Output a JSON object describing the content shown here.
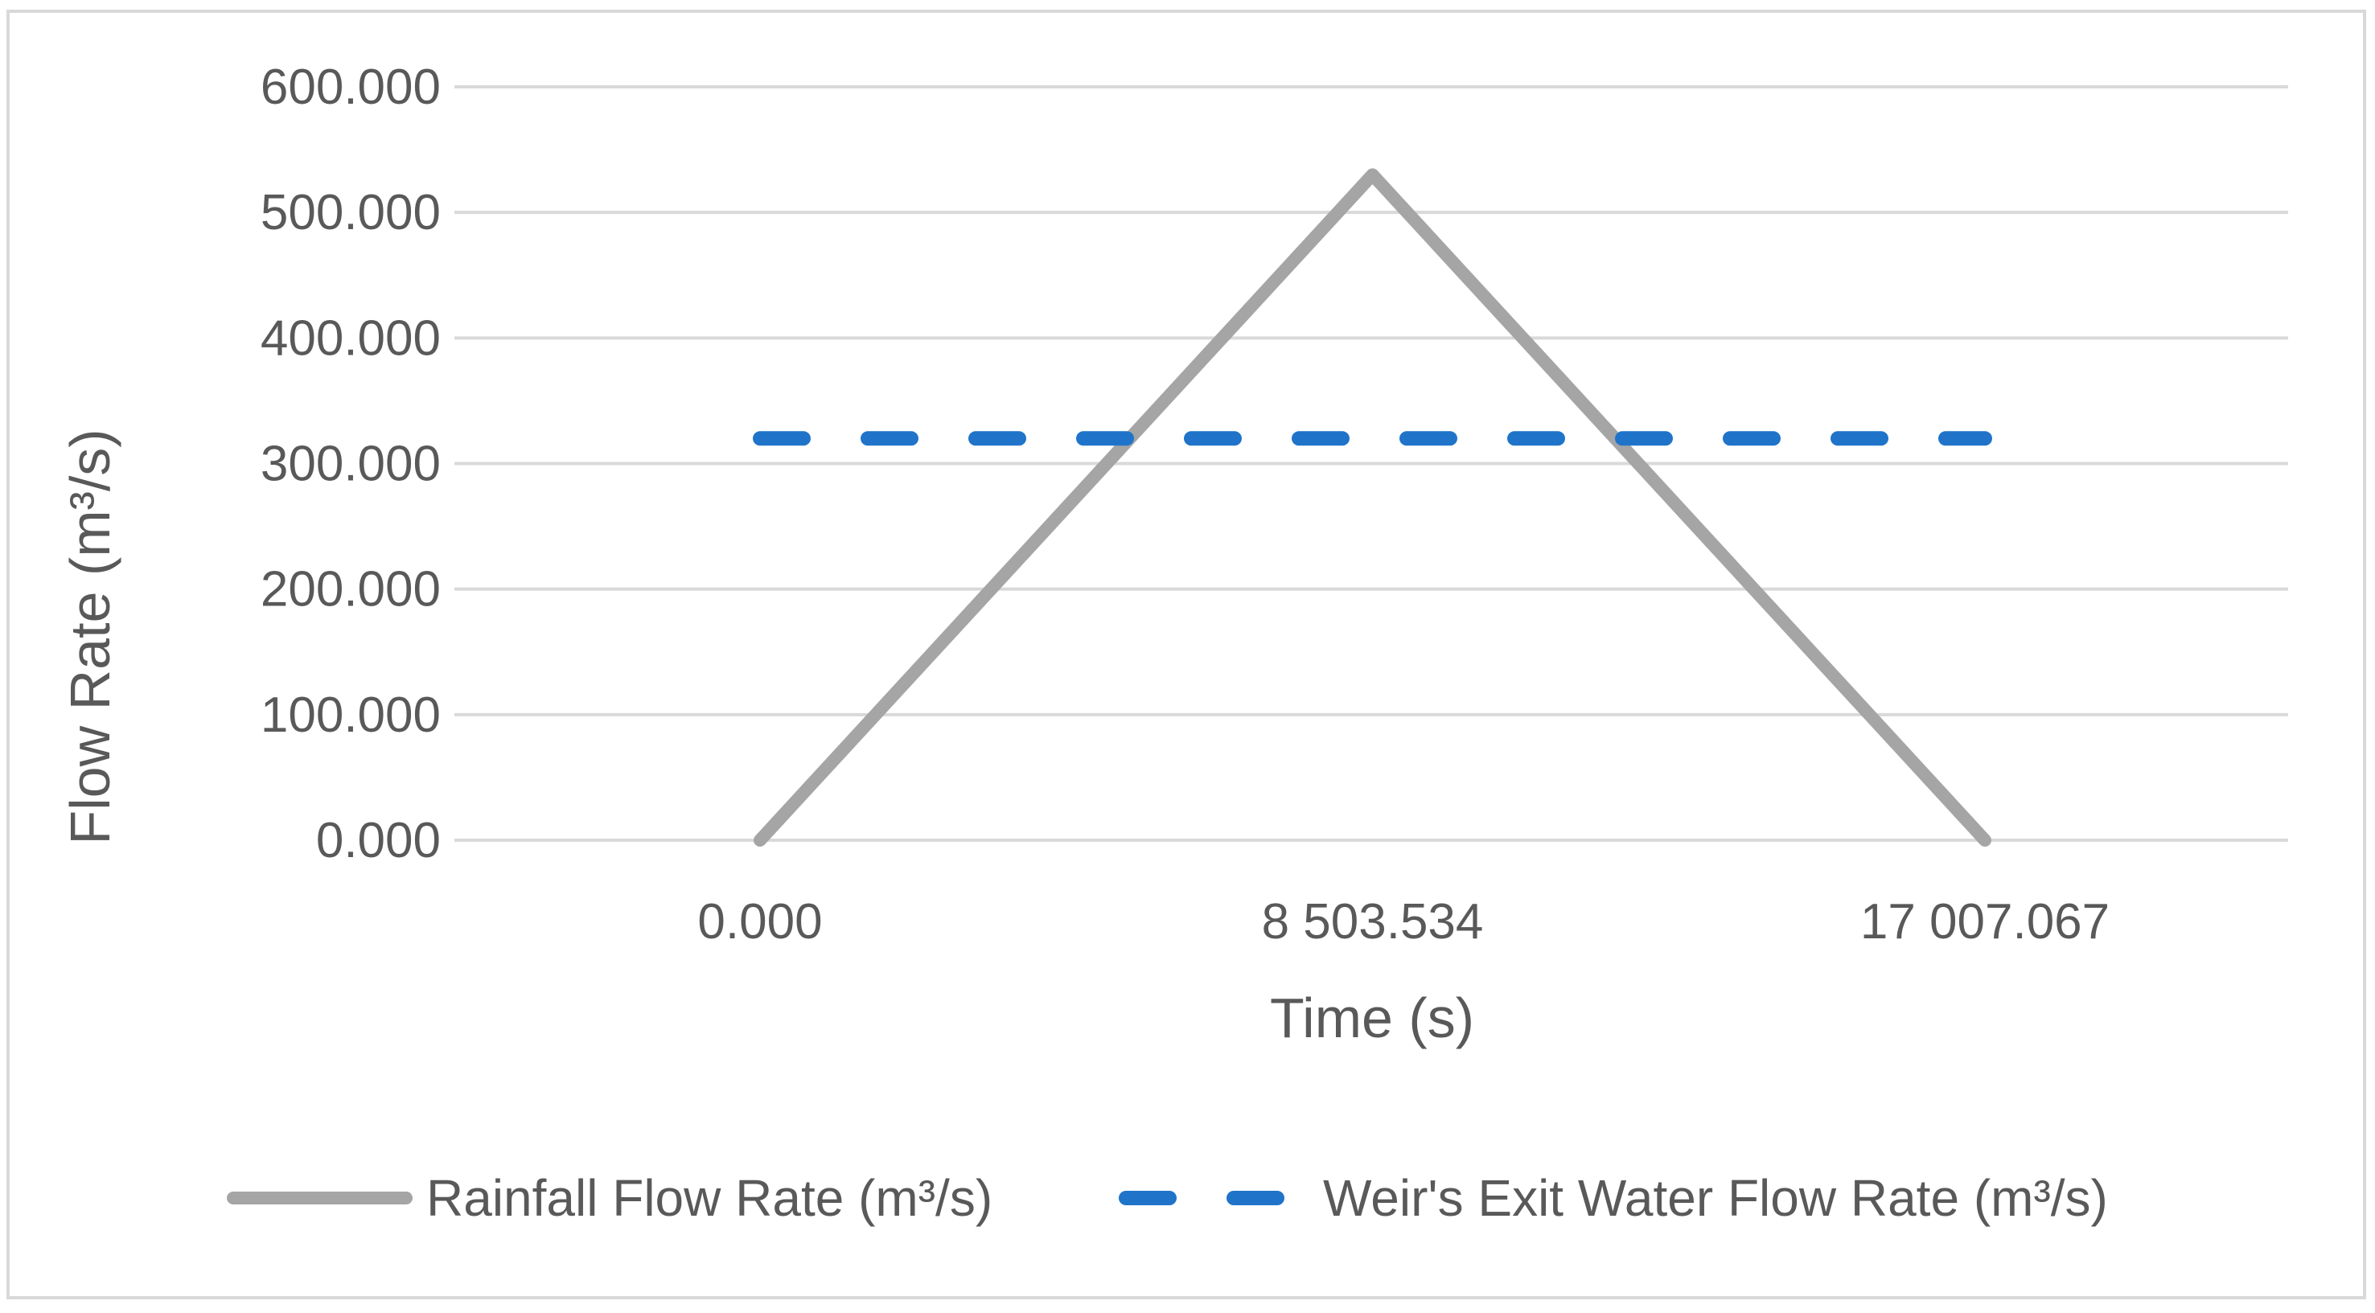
{
  "chart_data": {
    "type": "line",
    "title": "",
    "xlabel": "Time (s)",
    "ylabel": "Flow Rate  (m³/s)",
    "x": [
      0.0,
      8503.534,
      17007.067
    ],
    "x_tick_labels": [
      "0.000",
      "8 503.534",
      "17 007.067"
    ],
    "y_tick_labels": [
      "0.000",
      "100.000",
      "200.000",
      "300.000",
      "400.000",
      "500.000",
      "600.000"
    ],
    "ylim": [
      0,
      600
    ],
    "grid": true,
    "legend_position": "bottom",
    "series": [
      {
        "name": "Rainfall Flow Rate (m³/s)",
        "values": [
          0,
          530,
          0
        ],
        "color": "#a5a5a5",
        "style": "solid"
      },
      {
        "name": "Weir's Exit Water Flow Rate (m³/s)",
        "values": [
          320,
          320,
          320
        ],
        "color": "#1f74c9",
        "style": "dashed"
      }
    ],
    "colors": {
      "grid": "#d9d9d9",
      "text": "#595959",
      "border": "#d9d9d9"
    }
  }
}
